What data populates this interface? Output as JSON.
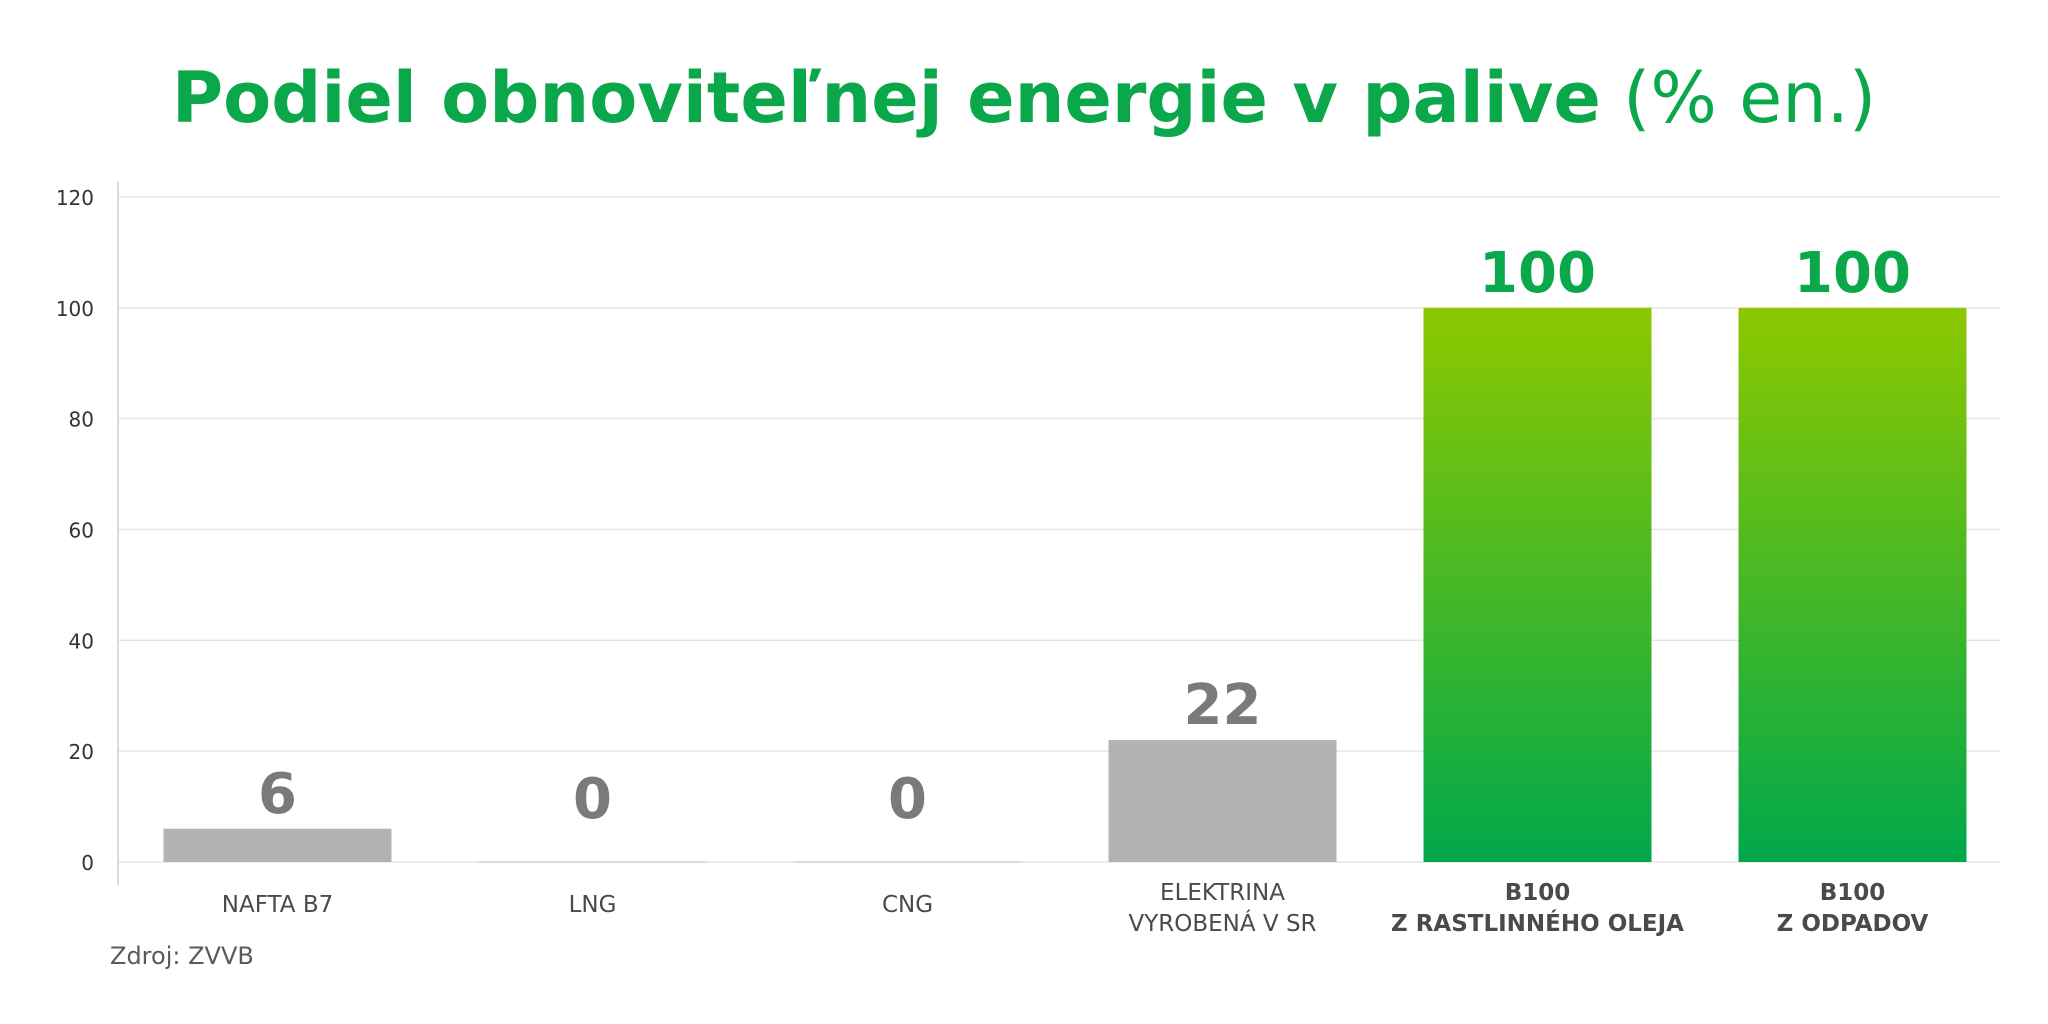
{
  "chart_data": {
    "type": "bar",
    "title": "Podiel obnoviteľnej energie v palive",
    "title_unit": "(% en.)",
    "categories": [
      [
        "NAFTA B7"
      ],
      [
        "LNG"
      ],
      [
        "CNG"
      ],
      [
        "ELEKTRINA",
        "VYROBENÁ V SR"
      ],
      [
        "B100",
        "Z RASTLINNÉHO OLEJA"
      ],
      [
        "B100",
        "Z ODPADOV"
      ]
    ],
    "values": [
      6,
      0,
      0,
      22,
      100,
      100
    ],
    "value_labels": [
      "6",
      "0",
      "0",
      "22",
      "100",
      "100"
    ],
    "highlight": [
      false,
      false,
      false,
      false,
      true,
      true
    ],
    "ylim": [
      0,
      120
    ],
    "yticks": [
      0,
      20,
      40,
      60,
      80,
      100,
      120
    ],
    "grid": true,
    "colors": {
      "title": "#0aa84a",
      "bar_gray": "#b3b3b3",
      "bar_green_top": "#8dc800",
      "bar_green_bottom": "#00a84b",
      "label_gray": "#7a7a7a",
      "label_green": "#0aa84a",
      "grid": "#e6e6e6",
      "tick_text": "#333333",
      "category_text": "#4a4a4a"
    }
  },
  "source": "Zdroj: ZVVB"
}
